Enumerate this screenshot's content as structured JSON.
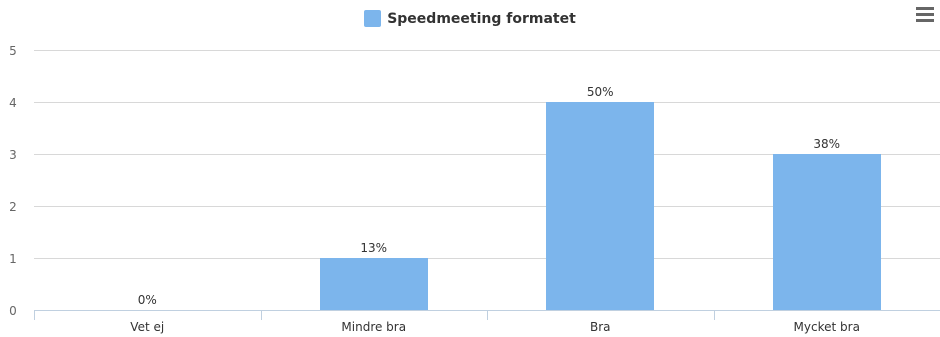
{
  "chart_data": {
    "type": "bar",
    "categories": [
      "Vet ej",
      "Mindre bra",
      "Bra",
      "Mycket bra"
    ],
    "series": [
      {
        "name": "Speedmeeting formatet",
        "values": [
          0,
          1,
          4,
          3
        ],
        "labels": [
          "0%",
          "13%",
          "50%",
          "38%"
        ]
      }
    ],
    "ylim": [
      0,
      5
    ],
    "yticks": [
      "0",
      "1",
      "2",
      "3",
      "4",
      "5"
    ],
    "grid": true,
    "legend_position": "top-center",
    "bar_color": "#7cb5ec"
  },
  "toolbar": {
    "menu_icon": "hamburger-menu-icon"
  }
}
